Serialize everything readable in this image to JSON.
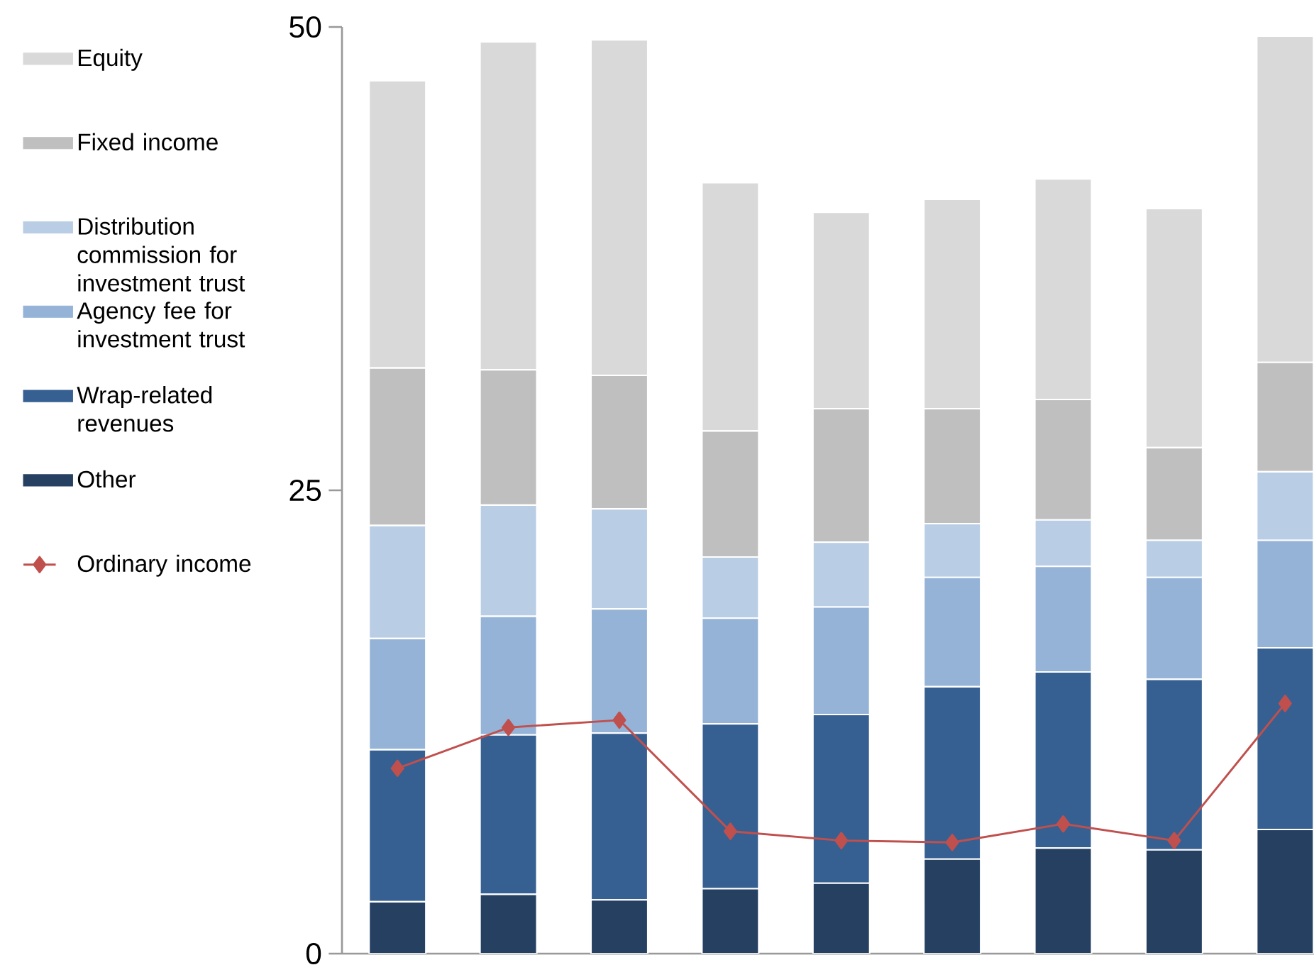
{
  "chart_data": {
    "type": "bar",
    "stacked": true,
    "legend": "left",
    "categories": [
      null,
      null,
      null,
      null,
      null,
      null,
      null,
      null,
      null
    ],
    "ylim": [
      0,
      50
    ],
    "yticks": [
      0,
      25,
      50
    ],
    "series": [
      {
        "name": "Other",
        "color": "#254061",
        "values": [
          2.8,
          3.2,
          2.9,
          3.5,
          3.8,
          5.1,
          5.7,
          5.6,
          6.7
        ]
      },
      {
        "name": "Wrap-related revenues",
        "color": "#376092",
        "values": [
          8.2,
          8.6,
          9.0,
          8.9,
          9.1,
          9.3,
          9.5,
          9.2,
          9.8
        ]
      },
      {
        "name": "Agency fee for investment trust",
        "color": "#95b3d7",
        "values": [
          6.0,
          6.4,
          6.7,
          5.7,
          5.8,
          5.9,
          5.7,
          5.5,
          5.8
        ]
      },
      {
        "name": "Distribution commission for investment trust",
        "color": "#b9cde5",
        "values": [
          6.1,
          6.0,
          5.4,
          3.3,
          3.5,
          2.9,
          2.5,
          2.0,
          3.7
        ]
      },
      {
        "name": "Fixed income",
        "color": "#bfbfbf",
        "values": [
          8.5,
          7.3,
          7.2,
          6.8,
          7.2,
          6.2,
          6.5,
          5.0,
          5.9
        ]
      },
      {
        "name": "Equity",
        "color": "#d9d9d9",
        "values": [
          15.5,
          17.7,
          18.1,
          13.4,
          10.6,
          11.3,
          11.9,
          12.9,
          17.6
        ]
      },
      {
        "name": "Ordinary income",
        "color": "#c0504d",
        "type": "line",
        "marker": "diamond",
        "values": [
          10.0,
          12.2,
          12.6,
          6.6,
          6.1,
          6.0,
          7.0,
          6.1,
          13.5
        ]
      }
    ]
  }
}
